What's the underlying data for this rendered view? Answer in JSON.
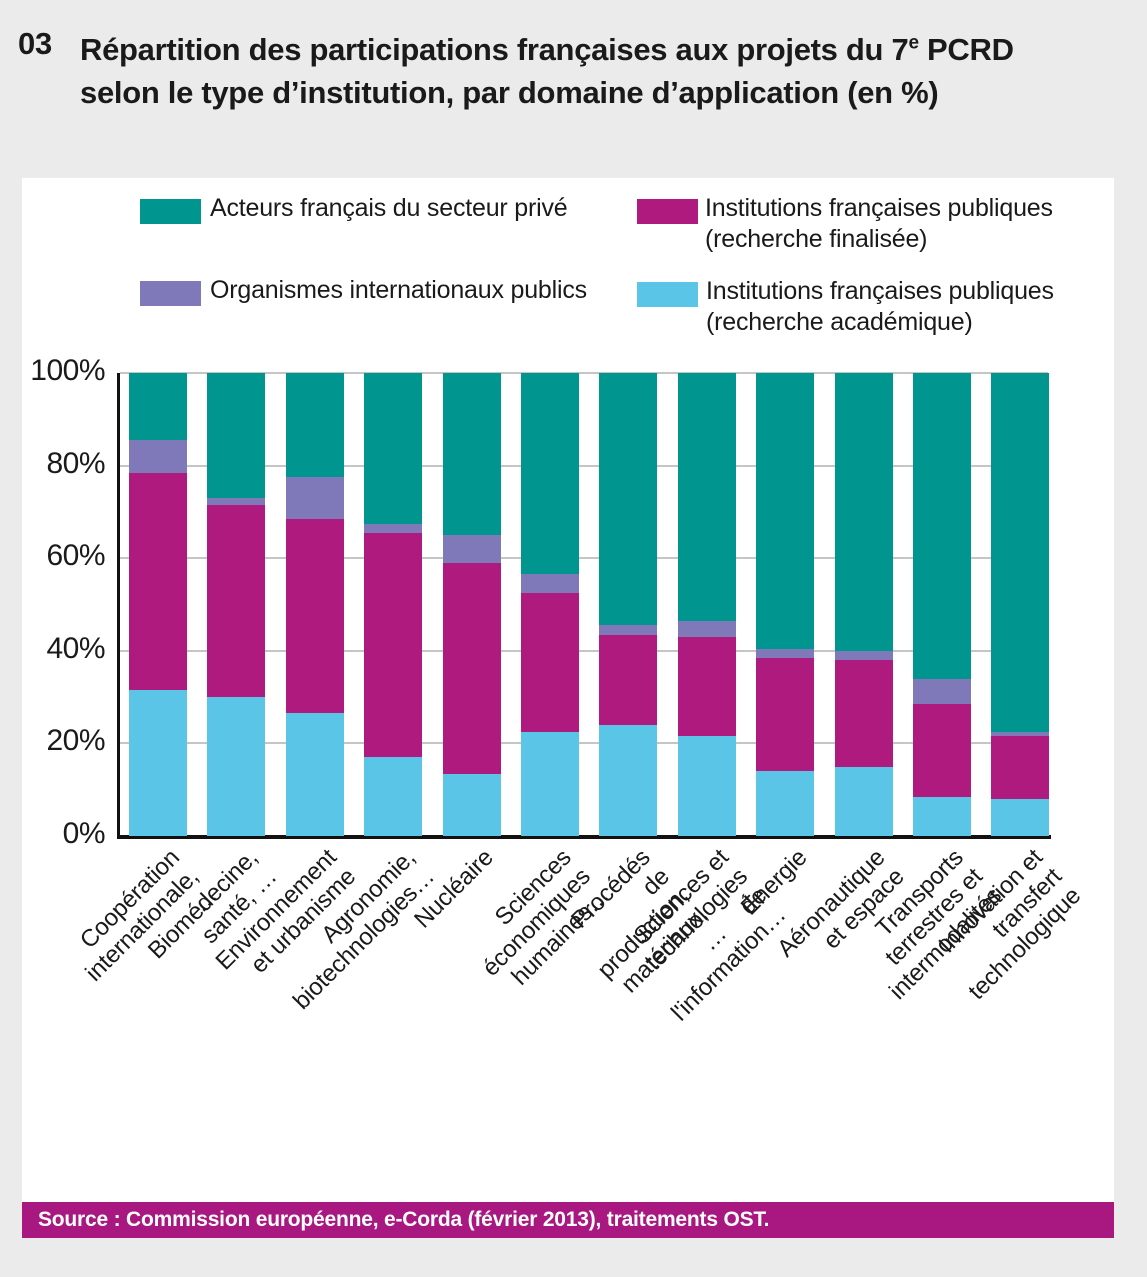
{
  "header": {
    "number": "03",
    "title_before_sup": "Répartition des participations françaises aux projets du 7",
    "title_sup": "e",
    "title_after_sup": " PCRD",
    "title_line2": "selon le type d’institution, par domaine d’application (en %)"
  },
  "legend": {
    "items": [
      {
        "label": "Acteurs français du secteur privé",
        "color": "#00968F"
      },
      {
        "label": "Institutions françaises publiques\n(recherche finalisée)",
        "color": "#AE1A7E"
      },
      {
        "label": "Organismes internationaux publics",
        "color": "#8079B9"
      },
      {
        "label": "Institutions françaises publiques\n(recherche académique)",
        "color": "#5BC5E8"
      }
    ]
  },
  "chart_data": {
    "type": "bar",
    "subtype": "stacked-100-percent",
    "title": "Répartition des participations françaises aux projets du 7e PCRD selon le type d’institution, par domaine d’application (en %)",
    "categories": [
      "Coopération\ninternationale, …",
      "Biomédecine, santé, …",
      "Environnement et urbanisme",
      "Agronomie, biotechnologies…",
      "Nucléaire",
      "Sciences économiques humaines…",
      "Procédés de production, matériaux, …",
      "Sciences et technologies de l'information…",
      "Énergie",
      "Aéronautique et espace",
      "Transports terrestres et intermodalités",
      "Innovation et transfert technologique"
    ],
    "series": [
      {
        "name": "Institutions françaises publiques (recherche académique)",
        "key": "academique",
        "color": "#5BC5E8",
        "values": [
          31.5,
          30,
          26.5,
          17,
          13.5,
          22.5,
          24,
          21.5,
          14,
          15,
          8.5,
          8
        ]
      },
      {
        "name": "Institutions françaises publiques (recherche finalisée)",
        "key": "finalisee",
        "color": "#AE1A7E",
        "values": [
          47,
          41.5,
          42,
          48.5,
          45.5,
          30,
          19.5,
          21.5,
          24.5,
          23,
          20,
          13.5
        ]
      },
      {
        "name": "Organismes internationaux publics",
        "key": "internationaux",
        "color": "#8079B9",
        "values": [
          7,
          1.5,
          9,
          2,
          6,
          4,
          2,
          3.5,
          2,
          2,
          5.5,
          1
        ]
      },
      {
        "name": "Acteurs français du secteur privé",
        "key": "prive",
        "color": "#00968F",
        "values": [
          14.5,
          27,
          22.5,
          32.5,
          35,
          43.5,
          54.5,
          53.5,
          59.5,
          60,
          66,
          77.5
        ]
      }
    ],
    "ylabel": "",
    "xlabel": "",
    "ylim": [
      0,
      100
    ],
    "yticks": [
      "0%",
      "20%",
      "40%",
      "60%",
      "80%",
      "100%"
    ],
    "grid": true,
    "legend_position": "top"
  },
  "source": {
    "text": "Source : Commission européenne, e-Corda (février 2013), traitements OST."
  },
  "colors": {
    "page_background": "#EBEBEB",
    "panel_background": "#FFFFFF",
    "teal": "#00968F",
    "magenta": "#AE1A7E",
    "purple": "#8079B9",
    "light_blue": "#5BC5E8",
    "source_bar_background": "#A91881",
    "gridline": "#C5C5C5",
    "axis": "#111111"
  }
}
